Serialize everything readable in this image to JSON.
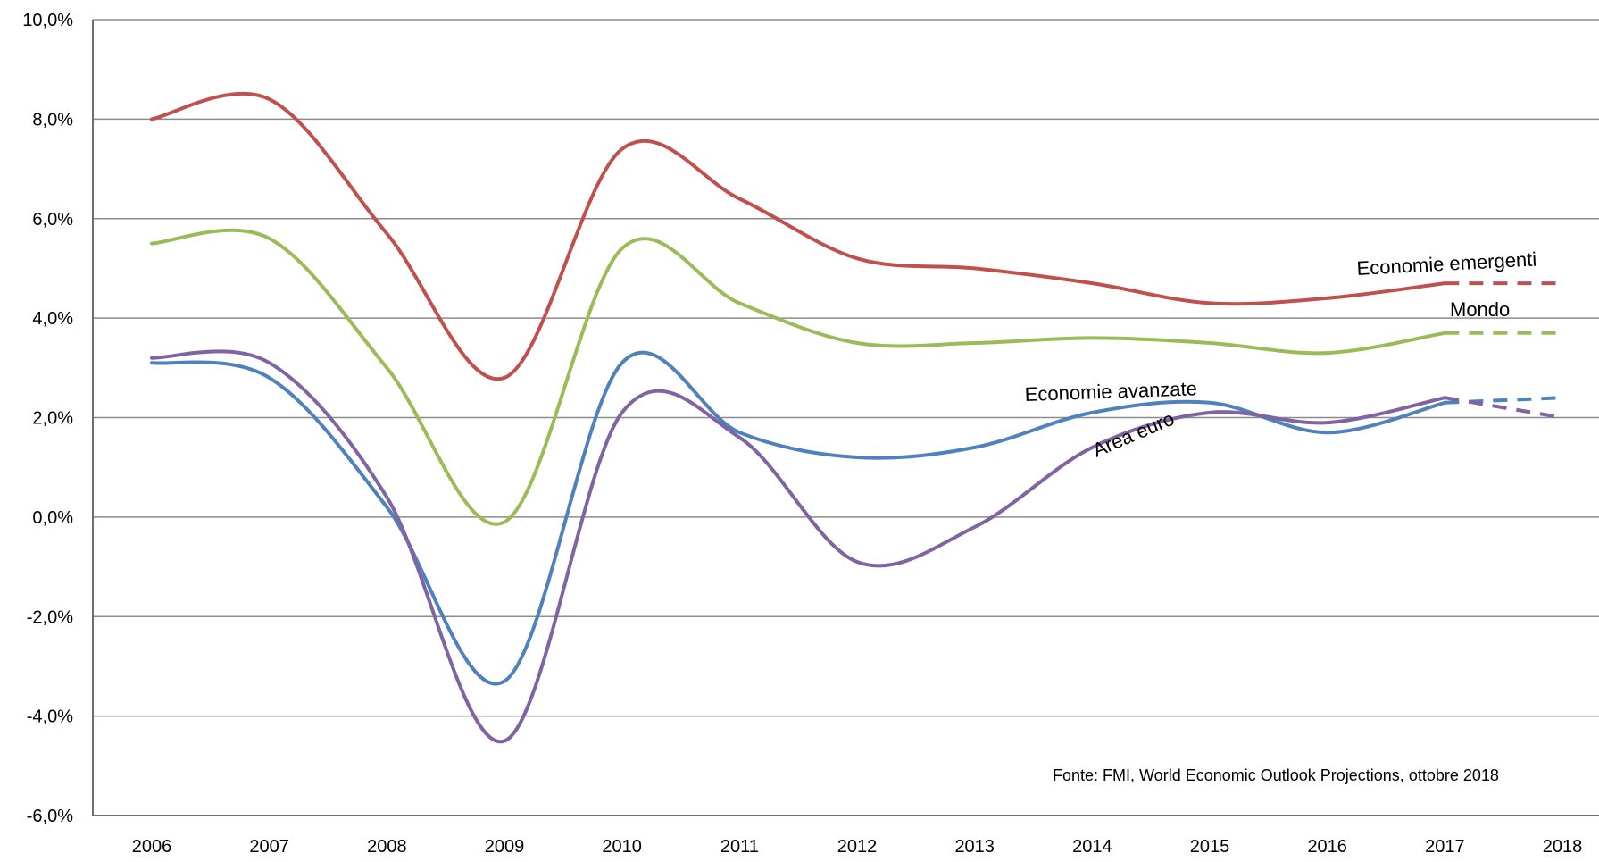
{
  "chart_data": {
    "type": "line",
    "title": "",
    "xlabel": "",
    "ylabel": "",
    "x": [
      "2006",
      "2007",
      "2008",
      "2009",
      "2010",
      "2011",
      "2012",
      "2013",
      "2014",
      "2015",
      "2016",
      "2017",
      "2018"
    ],
    "ylim": [
      -6,
      10
    ],
    "ytick_values": [
      -6,
      -4,
      -2,
      0,
      2,
      4,
      6,
      8,
      10
    ],
    "ytick_labels": [
      "-6,0%",
      "-4,0%",
      "-2,0%",
      "0,0%",
      "2,0%",
      "4,0%",
      "6,0%",
      "8,0%",
      "10,0%"
    ],
    "grid": true,
    "projected_from": "2017",
    "series": [
      {
        "name": "Economie emergenti",
        "color": "#c0504d",
        "values": [
          8.0,
          8.4,
          5.7,
          2.8,
          7.4,
          6.4,
          5.2,
          5.0,
          4.7,
          4.3,
          4.4,
          4.7,
          4.7
        ]
      },
      {
        "name": "Mondo",
        "color": "#9bbb59",
        "values": [
          5.5,
          5.6,
          3.0,
          -0.1,
          5.4,
          4.3,
          3.5,
          3.5,
          3.6,
          3.5,
          3.3,
          3.7,
          3.7
        ]
      },
      {
        "name": "Economie avanzate",
        "color": "#4f81bd",
        "values": [
          3.1,
          2.8,
          0.2,
          -3.3,
          3.1,
          1.7,
          1.2,
          1.4,
          2.1,
          2.3,
          1.7,
          2.3,
          2.4
        ]
      },
      {
        "name": "Area euro",
        "color": "#8064a2",
        "values": [
          3.2,
          3.1,
          0.4,
          -4.5,
          2.1,
          1.6,
          -0.9,
          -0.2,
          1.4,
          2.1,
          1.9,
          2.4,
          2.0
        ]
      }
    ],
    "annotations": [
      "Fonte: FMI, World Economic Outlook Projections, ottobre 2018"
    ]
  }
}
